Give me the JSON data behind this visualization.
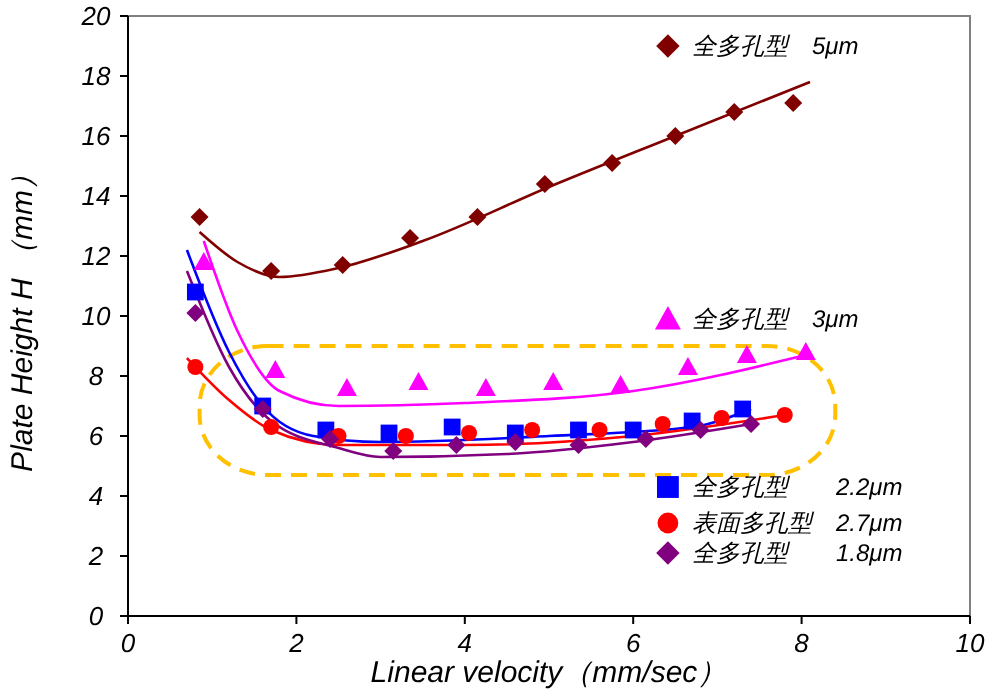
{
  "chart_data": {
    "type": "scatter",
    "xlabel": "Linear velocity（mm/sec）",
    "ylabel": "Plate Height H （mm）",
    "xlim": [
      0,
      10
    ],
    "ylim": [
      0,
      20
    ],
    "xticks": [
      0,
      2,
      4,
      6,
      8,
      10
    ],
    "yticks": [
      0,
      2,
      4,
      6,
      8,
      10,
      12,
      14,
      16,
      18,
      20
    ],
    "grid": false,
    "legend": "right",
    "series": [
      {
        "name": "全多孔型　5μm",
        "color": "#800000",
        "marker": "diamond",
        "x": [
          0.85,
          1.7,
          2.55,
          3.35,
          4.15,
          4.95,
          5.75,
          6.5,
          7.2,
          7.9
        ],
        "values": [
          13.3,
          11.5,
          11.7,
          12.6,
          13.3,
          14.4,
          15.1,
          16.0,
          16.8,
          17.1
        ]
      },
      {
        "name": "全多孔型　3μm",
        "color": "#ff00ff",
        "marker": "triangle",
        "x": [
          0.9,
          1.75,
          2.6,
          3.45,
          4.25,
          5.05,
          5.85,
          6.65,
          7.35,
          8.05
        ],
        "values": [
          11.8,
          8.2,
          7.6,
          7.8,
          7.6,
          7.8,
          7.7,
          8.3,
          8.7,
          8.8
        ]
      },
      {
        "name": "全多孔型　　2.2μm",
        "color": "#0000ff",
        "marker": "square",
        "x": [
          0.8,
          1.6,
          2.35,
          3.1,
          3.85,
          4.6,
          5.35,
          6.0,
          6.7,
          7.3
        ],
        "values": [
          10.8,
          7.0,
          6.2,
          6.1,
          6.3,
          6.1,
          6.2,
          6.2,
          6.5,
          6.9
        ]
      },
      {
        "name": "表面多孔型　2.7μm",
        "color": "#ff0000",
        "marker": "circle",
        "x": [
          0.8,
          1.7,
          2.5,
          3.3,
          4.05,
          4.8,
          5.6,
          6.35,
          7.05,
          7.8
        ],
        "values": [
          8.3,
          6.3,
          6.0,
          6.0,
          6.1,
          6.2,
          6.2,
          6.4,
          6.6,
          6.7
        ]
      },
      {
        "name": "全多孔型　　1.8μm",
        "color": "#800080",
        "marker": "diamond",
        "x": [
          0.8,
          1.6,
          2.4,
          3.15,
          3.9,
          4.6,
          5.35,
          6.15,
          6.8,
          7.4
        ],
        "values": [
          10.1,
          6.9,
          5.9,
          5.5,
          5.7,
          5.8,
          5.7,
          5.9,
          6.2,
          6.4
        ]
      },
      {
        "type": "line",
        "color": "#800000",
        "marker": "none",
        "x": [
          0.85,
          1.3,
          1.8,
          2.5,
          3.5,
          5,
          6.5,
          8.1
        ],
        "values": [
          12.8,
          11.8,
          11.3,
          11.6,
          12.5,
          14.3,
          16.0,
          17.8
        ]
      },
      {
        "type": "line",
        "color": "#ff00ff",
        "marker": "none",
        "x": [
          0.9,
          1.3,
          1.8,
          2.5,
          4,
          6,
          8.05
        ],
        "values": [
          12.5,
          9.5,
          7.5,
          7.0,
          7.1,
          7.5,
          8.7
        ]
      },
      {
        "type": "line",
        "color": "#0000ff",
        "marker": "none",
        "x": [
          0.7,
          1.2,
          1.6,
          2.2,
          3,
          5,
          6.7,
          7.4
        ],
        "values": [
          12.2,
          8.8,
          7.0,
          6.0,
          5.8,
          6.0,
          6.3,
          6.9
        ]
      },
      {
        "type": "line",
        "color": "#ff0000",
        "marker": "none",
        "x": [
          0.7,
          1.2,
          1.7,
          2.5,
          4,
          6,
          7.8
        ],
        "values": [
          8.6,
          7.2,
          6.2,
          5.7,
          5.7,
          6.0,
          6.7
        ]
      },
      {
        "type": "line",
        "color": "#800080",
        "marker": "none",
        "x": [
          0.7,
          1.2,
          1.7,
          2.5,
          3,
          4.5,
          6,
          7.4
        ],
        "values": [
          11.5,
          8.3,
          6.5,
          5.6,
          5.3,
          5.4,
          5.8,
          6.4
        ]
      }
    ]
  }
}
